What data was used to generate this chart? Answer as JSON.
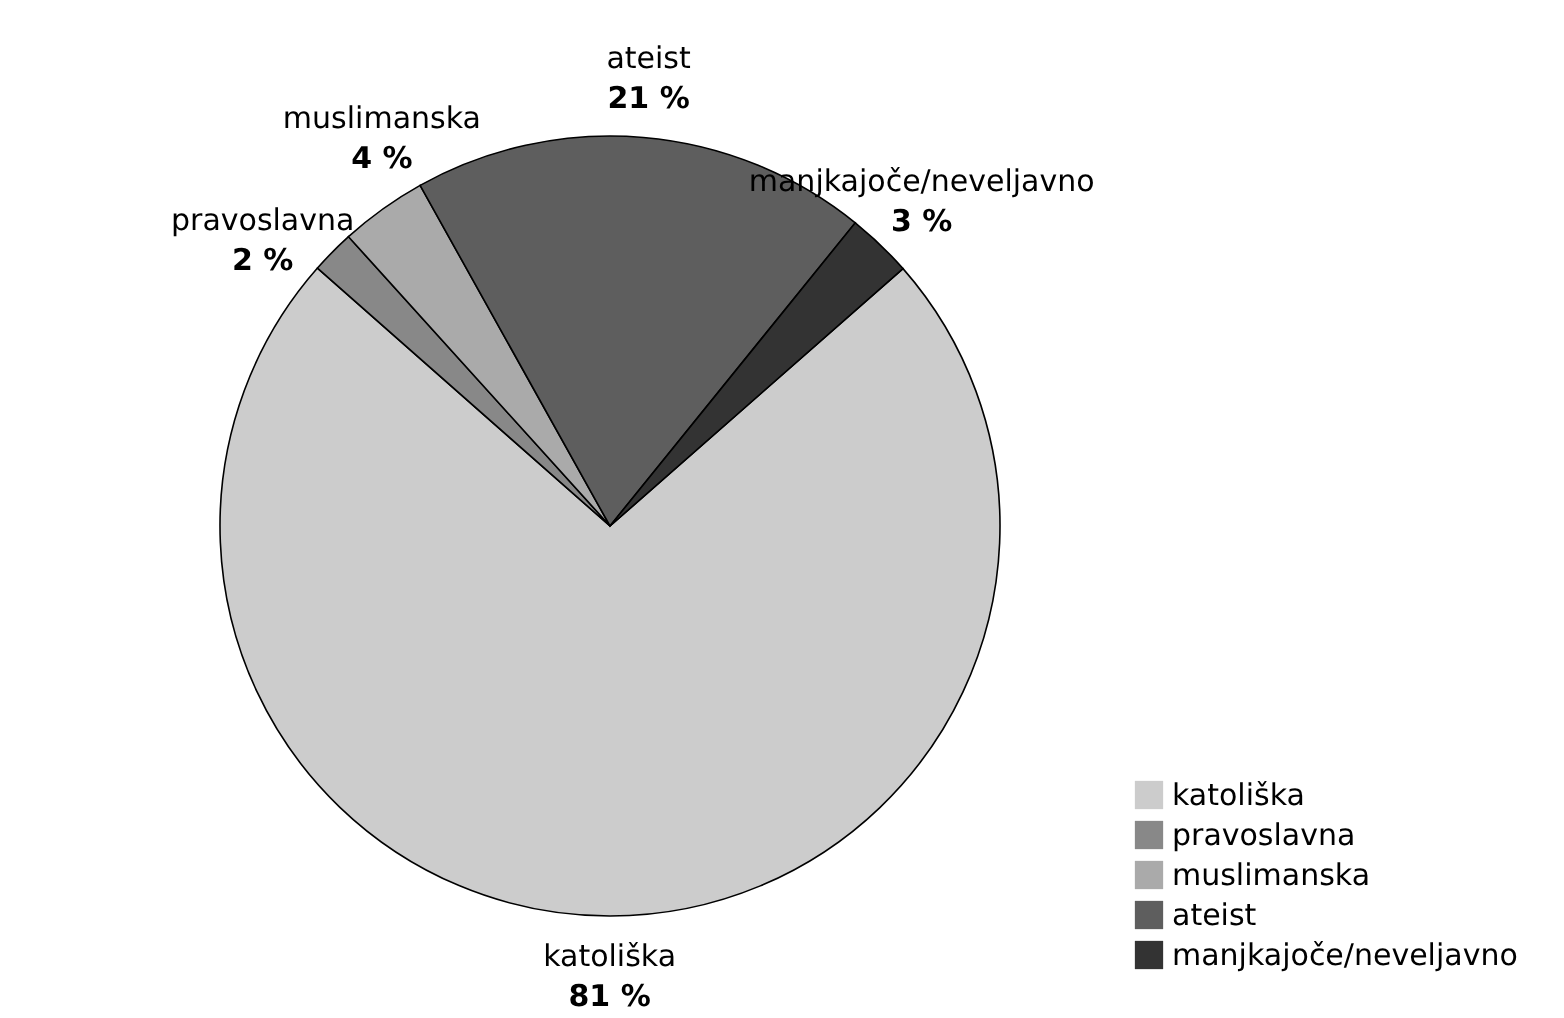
{
  "chart_data": {
    "type": "pie",
    "categories": [
      "katoliška",
      "pravoslavna",
      "muslimanska",
      "ateist",
      "manjkajoče/neveljavno"
    ],
    "values": [
      81,
      2,
      4,
      21,
      3
    ],
    "colors": [
      "#cccccc",
      "#888888",
      "#aaaaaa",
      "#5e5e5e",
      "#333333"
    ],
    "value_labels": [
      "81 %",
      "2 %",
      "4 %",
      "21 %",
      "3 %"
    ],
    "legend": "bottom right"
  }
}
